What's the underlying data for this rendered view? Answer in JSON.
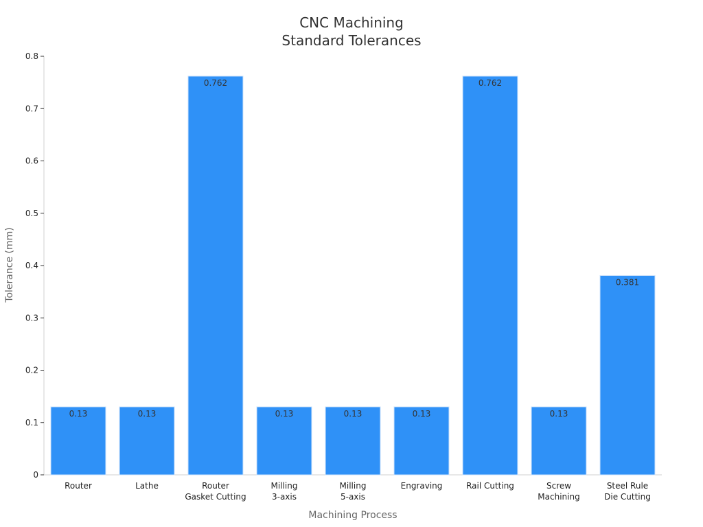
{
  "chart_data": {
    "type": "bar",
    "title_lines": [
      "CNC Machining",
      "Standard Tolerances"
    ],
    "xlabel": "Machining Process",
    "ylabel": "Tolerance (mm)",
    "ylim": [
      0,
      0.8
    ],
    "yticks": [
      0,
      0.1,
      0.2,
      0.3,
      0.4,
      0.5,
      0.6,
      0.7,
      0.8
    ],
    "ytick_labels": [
      "0",
      "0.1",
      "0.2",
      "0.3",
      "0.4",
      "0.5",
      "0.6",
      "0.7",
      "0.8"
    ],
    "grid": false,
    "categories": [
      [
        "Router"
      ],
      [
        "Lathe"
      ],
      [
        "Router",
        "Gasket Cutting"
      ],
      [
        "Milling",
        "3-axis"
      ],
      [
        "Milling",
        "5-axis"
      ],
      [
        "Engraving"
      ],
      [
        "Rail Cutting"
      ],
      [
        "Screw",
        "Machining"
      ],
      [
        "Steel Rule",
        "Die Cutting"
      ]
    ],
    "values": [
      0.13,
      0.13,
      0.762,
      0.13,
      0.13,
      0.13,
      0.762,
      0.13,
      0.381
    ],
    "data_labels": [
      "0.13",
      "0.13",
      "0.762",
      "0.13",
      "0.13",
      "0.13",
      "0.762",
      "0.13",
      "0.381"
    ],
    "bar_color": "#2f91f7"
  }
}
